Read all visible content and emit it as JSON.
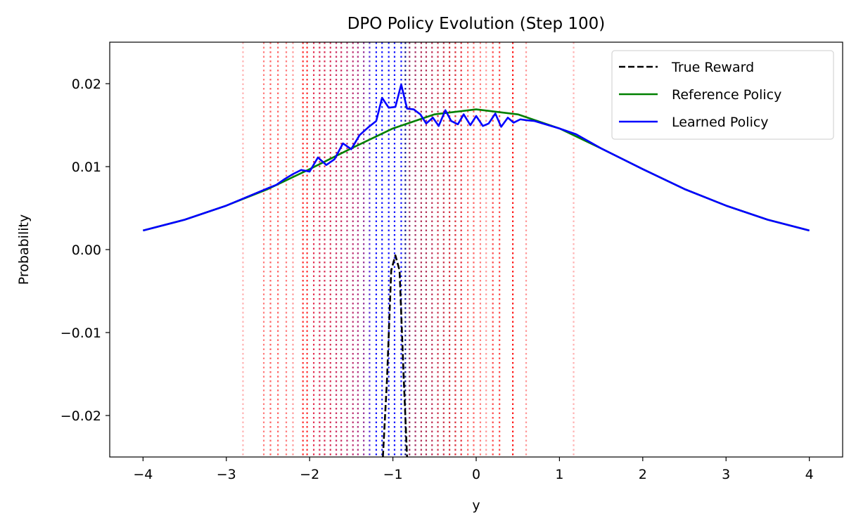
{
  "chart_data": {
    "type": "line",
    "title": "DPO Policy Evolution (Step 100)",
    "xlabel": "y",
    "ylabel": "Probability",
    "xlim": [
      -4.4,
      4.4
    ],
    "ylim": [
      -0.025,
      0.025
    ],
    "xticks": [
      -4,
      -3,
      -2,
      -1,
      0,
      1,
      2,
      3,
      4
    ],
    "xtick_labels": [
      "−4",
      "−3",
      "−2",
      "−1",
      "0",
      "1",
      "2",
      "3",
      "4"
    ],
    "yticks": [
      -0.02,
      -0.01,
      0.0,
      0.01,
      0.02
    ],
    "ytick_labels": [
      "−0.02",
      "−0.01",
      "0.00",
      "0.01",
      "0.02"
    ],
    "legend_position": "top-right",
    "series": [
      {
        "name": "True Reward",
        "color": "#000000",
        "style": "dashed",
        "x": [
          -1.12,
          -1.07,
          -1.02,
          -0.97,
          -0.92,
          -0.87,
          -0.83
        ],
        "y": [
          -0.025,
          -0.0155,
          -0.0025,
          -0.0007,
          -0.0025,
          -0.0155,
          -0.025
        ]
      },
      {
        "name": "Reference Policy",
        "color": "#008000",
        "style": "solid",
        "x": [
          -4.0,
          -3.5,
          -3.0,
          -2.5,
          -2.0,
          -1.5,
          -1.0,
          -0.5,
          0.0,
          0.5,
          1.0,
          1.5,
          2.0,
          2.5,
          3.0,
          3.5,
          4.0
        ],
        "y": [
          0.0023,
          0.0036,
          0.0053,
          0.0073,
          0.0097,
          0.0122,
          0.0146,
          0.0163,
          0.0169,
          0.0163,
          0.0146,
          0.0122,
          0.0097,
          0.0073,
          0.0053,
          0.0036,
          0.0023
        ]
      },
      {
        "name": "Learned Policy",
        "color": "#0000ff",
        "style": "solid",
        "x": [
          -4.0,
          -3.5,
          -3.0,
          -2.5,
          -2.4,
          -2.3,
          -2.2,
          -2.1,
          -2.0,
          -1.9,
          -1.8,
          -1.7,
          -1.6,
          -1.5,
          -1.4,
          -1.3,
          -1.2,
          -1.13,
          -1.05,
          -0.97,
          -0.9,
          -0.83,
          -0.75,
          -0.67,
          -0.6,
          -0.52,
          -0.45,
          -0.37,
          -0.3,
          -0.22,
          -0.15,
          -0.07,
          0.0,
          0.08,
          0.15,
          0.23,
          0.3,
          0.38,
          0.45,
          0.53,
          0.6,
          0.7,
          1.0,
          1.2,
          1.5,
          2.0,
          2.5,
          3.0,
          3.5,
          4.0
        ],
        "y": [
          0.0023,
          0.0036,
          0.0053,
          0.0074,
          0.0078,
          0.0085,
          0.0091,
          0.0096,
          0.0094,
          0.0111,
          0.0102,
          0.0109,
          0.0128,
          0.0121,
          0.0138,
          0.0147,
          0.0155,
          0.0183,
          0.0171,
          0.0172,
          0.0199,
          0.017,
          0.0169,
          0.0163,
          0.0152,
          0.0159,
          0.0149,
          0.0168,
          0.0155,
          0.0151,
          0.0163,
          0.015,
          0.0161,
          0.0149,
          0.0152,
          0.0164,
          0.0148,
          0.0159,
          0.0153,
          0.0157,
          0.0156,
          0.0155,
          0.0146,
          0.0139,
          0.0122,
          0.0097,
          0.0073,
          0.0053,
          0.0036,
          0.0023
        ]
      }
    ],
    "vertical_lines": [
      {
        "x": -2.8,
        "color": "#ff0000",
        "alpha": 0.3
      },
      {
        "x": -2.55,
        "color": "#ff0000",
        "alpha": 0.5
      },
      {
        "x": -2.47,
        "color": "#ff0000",
        "alpha": 0.6
      },
      {
        "x": -2.38,
        "color": "#ff0000",
        "alpha": 0.6
      },
      {
        "x": -2.28,
        "color": "#ff0000",
        "alpha": 0.5
      },
      {
        "x": -2.2,
        "color": "#ff0000",
        "alpha": 0.4
      },
      {
        "x": -2.08,
        "color": "#ff0000",
        "alpha": 0.8
      },
      {
        "x": -2.03,
        "color": "#ff0000",
        "alpha": 0.8
      },
      {
        "x": -1.95,
        "color": "#e0002a",
        "alpha": 0.8
      },
      {
        "x": -1.88,
        "color": "#d00030",
        "alpha": 0.8
      },
      {
        "x": -1.82,
        "color": "#d00030",
        "alpha": 0.8
      },
      {
        "x": -1.75,
        "color": "#d00030",
        "alpha": 0.8
      },
      {
        "x": -1.68,
        "color": "#c00040",
        "alpha": 0.8
      },
      {
        "x": -1.62,
        "color": "#c00040",
        "alpha": 0.8
      },
      {
        "x": -1.55,
        "color": "#b00050",
        "alpha": 0.8
      },
      {
        "x": -1.48,
        "color": "#b00050",
        "alpha": 0.8
      },
      {
        "x": -1.42,
        "color": "#a00060",
        "alpha": 0.8
      },
      {
        "x": -1.35,
        "color": "#800080",
        "alpha": 0.8
      },
      {
        "x": -1.28,
        "color": "#3000d0",
        "alpha": 0.8
      },
      {
        "x": -1.2,
        "color": "#0000ff",
        "alpha": 0.9
      },
      {
        "x": -1.13,
        "color": "#0000ff",
        "alpha": 0.9
      },
      {
        "x": -1.05,
        "color": "#0000ff",
        "alpha": 0.9
      },
      {
        "x": -0.98,
        "color": "#0000ff",
        "alpha": 0.9
      },
      {
        "x": -0.9,
        "color": "#0000ff",
        "alpha": 0.9
      },
      {
        "x": -0.85,
        "color": "#000080",
        "alpha": 0.9
      },
      {
        "x": -0.8,
        "color": "#800040",
        "alpha": 0.8
      },
      {
        "x": -0.73,
        "color": "#900040",
        "alpha": 0.8
      },
      {
        "x": -0.66,
        "color": "#a00030",
        "alpha": 0.8
      },
      {
        "x": -0.6,
        "color": "#a00030",
        "alpha": 0.8
      },
      {
        "x": -0.53,
        "color": "#b00030",
        "alpha": 0.8
      },
      {
        "x": -0.46,
        "color": "#c00020",
        "alpha": 0.8
      },
      {
        "x": -0.39,
        "color": "#c00020",
        "alpha": 0.8
      },
      {
        "x": -0.32,
        "color": "#d00010",
        "alpha": 0.8
      },
      {
        "x": -0.25,
        "color": "#d00010",
        "alpha": 0.8
      },
      {
        "x": -0.18,
        "color": "#e00010",
        "alpha": 0.8
      },
      {
        "x": -0.1,
        "color": "#ff0000",
        "alpha": 0.6
      },
      {
        "x": -0.03,
        "color": "#ff0000",
        "alpha": 0.6
      },
      {
        "x": 0.05,
        "color": "#ff0000",
        "alpha": 0.5
      },
      {
        "x": 0.12,
        "color": "#ff0000",
        "alpha": 0.4
      },
      {
        "x": 0.2,
        "color": "#ff0000",
        "alpha": 0.7
      },
      {
        "x": 0.28,
        "color": "#ff0000",
        "alpha": 0.7
      },
      {
        "x": 0.44,
        "color": "#ff0000",
        "alpha": 0.9
      },
      {
        "x": 0.6,
        "color": "#ff0000",
        "alpha": 0.4
      },
      {
        "x": 1.17,
        "color": "#ff0000",
        "alpha": 0.3
      }
    ]
  }
}
